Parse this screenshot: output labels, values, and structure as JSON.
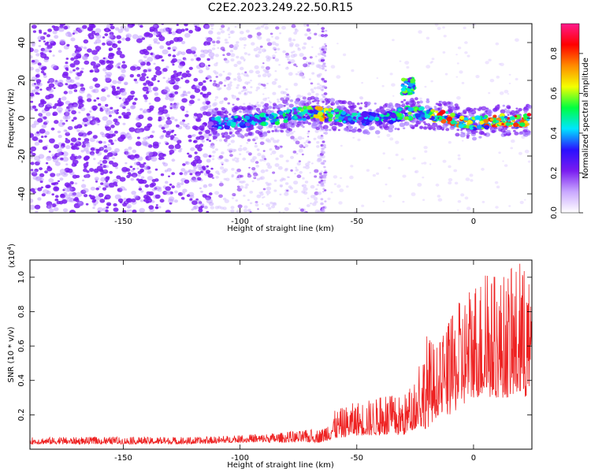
{
  "title": "C2E2.2023.249.22.50.R15",
  "colors": {
    "snr_line": "#ee2222",
    "axis": "#000000",
    "point": "#7a1cf0"
  },
  "chart_data": [
    {
      "type": "heatmap",
      "xlabel": "Height of straight line (km)",
      "ylabel": "Frequency (Hz)",
      "xlim": [
        -190,
        25
      ],
      "ylim": [
        -50,
        50
      ],
      "x_ticks": [
        -150,
        -100,
        -50,
        0
      ],
      "x_tick_labels": [
        "-150",
        "-100",
        "-50",
        "0"
      ],
      "y_ticks": [
        -40,
        -20,
        0,
        20,
        40
      ],
      "y_tick_labels": [
        "-40",
        "-20",
        "0",
        "20",
        "40"
      ],
      "colorbar": {
        "label": "Normalized spectral amplitude",
        "range": [
          0,
          0.95
        ],
        "ticks": [
          0.0,
          0.2,
          0.4,
          0.6,
          0.8
        ],
        "tick_labels": [
          "0.0",
          "0.2",
          "0.4",
          "0.6",
          "0.8"
        ],
        "colormap": [
          "#ffffff",
          "#c9a8ff",
          "#7a1cf0",
          "#2a10ff",
          "#00e5ff",
          "#00ff40",
          "#f4ff00",
          "#ff8a00",
          "#ff0000",
          "#ff1a8c"
        ]
      },
      "ridge": {
        "x": [
          -113,
          -100,
          -90,
          -80,
          -70,
          -64,
          -55,
          -45,
          -35,
          -28,
          -20,
          -10,
          0,
          10,
          20,
          24
        ],
        "y": [
          -3,
          -2,
          -1,
          1,
          3,
          2,
          1,
          0,
          1,
          3,
          2,
          0,
          -3,
          -1,
          -2,
          -1
        ],
        "peak_amplitude": [
          0.45,
          0.5,
          0.55,
          0.55,
          0.6,
          0.85,
          0.5,
          0.45,
          0.55,
          0.6,
          0.7,
          0.95,
          0.7,
          0.9,
          0.95,
          0.9
        ]
      },
      "blob": {
        "x": -28,
        "y": 17,
        "amplitude": 0.5
      }
    },
    {
      "type": "line",
      "xlabel": "Height of straight line (km)",
      "ylabel": "SNR (10 * v/v)",
      "multiplier_label": "(x10",
      "multiplier_exp": "4",
      "multiplier_close": ")",
      "xlim": [
        -190,
        25
      ],
      "ylim": [
        0,
        1.1
      ],
      "x_ticks": [
        -150,
        -100,
        -50,
        0
      ],
      "x_tick_labels": [
        "-150",
        "-100",
        "-50",
        "0"
      ],
      "y_ticks": [
        0.2,
        0.4,
        0.6,
        0.8,
        1.0
      ],
      "y_tick_labels": [
        "0.2",
        "0.4",
        "0.6",
        "0.8",
        "1.0"
      ],
      "envelope": {
        "x": [
          -190,
          -150,
          -120,
          -100,
          -80,
          -65,
          -60,
          -50,
          -40,
          -30,
          -25,
          -20,
          -15,
          -10,
          0,
          10,
          20,
          25
        ],
        "baseline": [
          0.03,
          0.03,
          0.03,
          0.04,
          0.04,
          0.04,
          0.06,
          0.08,
          0.08,
          0.08,
          0.12,
          0.12,
          0.2,
          0.2,
          0.3,
          0.3,
          0.3,
          0.3
        ],
        "peak": [
          0.07,
          0.07,
          0.07,
          0.08,
          0.1,
          0.12,
          0.22,
          0.28,
          0.3,
          0.32,
          0.38,
          0.68,
          0.6,
          0.75,
          1.02,
          1.0,
          1.08,
          0.95
        ]
      }
    }
  ]
}
